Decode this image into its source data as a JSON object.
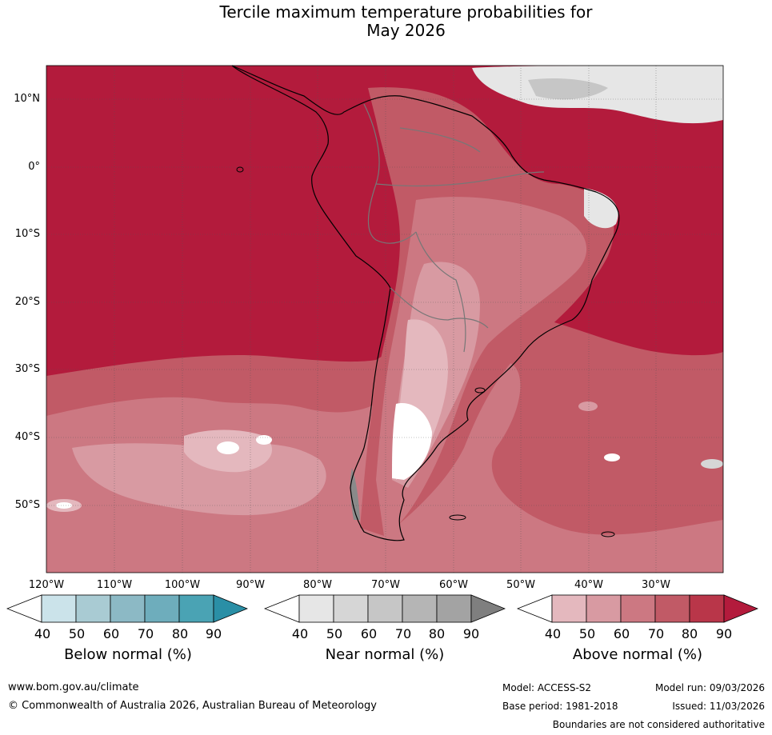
{
  "title_line1": "Tercile maximum temperature probabilities for",
  "title_line2": "May 2026",
  "latitude_labels": [
    "10°N",
    "0°",
    "10°S",
    "20°S",
    "30°S",
    "40°S",
    "50°S"
  ],
  "longitude_labels": [
    "120°W",
    "110°W",
    "100°W",
    "90°W",
    "80°W",
    "70°W",
    "60°W",
    "50°W",
    "40°W",
    "30°W"
  ],
  "colorbars": [
    {
      "title": "Below normal (%)",
      "ticks": [
        "40",
        "50",
        "60",
        "70",
        "80",
        "90"
      ],
      "colors": [
        "#ffffff",
        "#cbe3ea",
        "#a9cbd3",
        "#8cb9c5",
        "#6eadbc",
        "#4aa3b4",
        "#2a8fa6"
      ]
    },
    {
      "title": "Near normal (%)",
      "ticks": [
        "40",
        "50",
        "60",
        "70",
        "80",
        "90"
      ],
      "colors": [
        "#ffffff",
        "#e6e6e6",
        "#d6d6d6",
        "#c6c6c6",
        "#b5b5b5",
        "#a3a3a3",
        "#7f7f7f"
      ]
    },
    {
      "title": "Above normal (%)",
      "ticks": [
        "40",
        "50",
        "60",
        "70",
        "80",
        "90"
      ],
      "colors": [
        "#ffffff",
        "#e4b8be",
        "#d89aa2",
        "#cc7882",
        "#c15a66",
        "#b93649",
        "#b31b3c"
      ]
    }
  ],
  "footer": {
    "website": "www.bom.gov.au/climate",
    "copyright": "© Commonwealth of Australia 2026, Australian Bureau of Meteorology",
    "model": "Model: ACCESS-S2",
    "base_period": "Base period: 1981-2018",
    "model_run": "Model run: 09/03/2026",
    "issued": "Issued: 11/03/2026",
    "disclaimer": "Boundaries are not considered authoritative"
  }
}
